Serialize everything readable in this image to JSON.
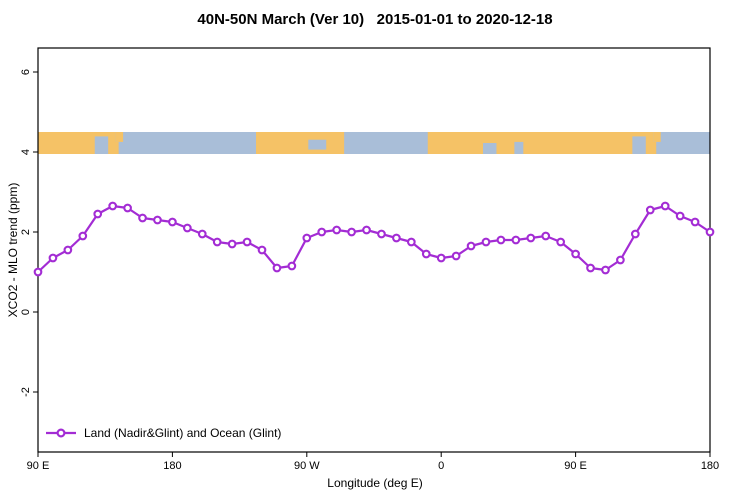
{
  "chart_data": {
    "type": "line",
    "title": "40N-50N March (Ver 10)   2015-01-01 to 2020-12-18",
    "xlabel": "Longitude (deg E)",
    "ylabel": "XCO2 - MLO trend (ppm)",
    "xlim": [
      90,
      540
    ],
    "ylim": [
      -3.5,
      6.6
    ],
    "grid": false,
    "x_ticks": [
      {
        "value": 90,
        "label": "90 E"
      },
      {
        "value": 180,
        "label": "180"
      },
      {
        "value": 270,
        "label": "90 W"
      },
      {
        "value": 360,
        "label": "0"
      },
      {
        "value": 450,
        "label": "90 E"
      },
      {
        "value": 540,
        "label": "180"
      }
    ],
    "y_ticks": [
      {
        "value": -2,
        "label": "-2"
      },
      {
        "value": 0,
        "label": "0"
      },
      {
        "value": 2,
        "label": "2"
      },
      {
        "value": 4,
        "label": "4"
      },
      {
        "value": 6,
        "label": "6"
      }
    ],
    "series": [
      {
        "name": "Land (Nadir&Glint) and Ocean (Glint)",
        "color": "#a32cd4",
        "marker": "open-circle",
        "x": [
          90,
          100,
          110,
          120,
          130,
          140,
          150,
          160,
          170,
          180,
          190,
          200,
          210,
          220,
          230,
          240,
          250,
          260,
          270,
          280,
          290,
          300,
          310,
          320,
          330,
          340,
          350,
          360,
          370,
          380,
          390,
          400,
          410,
          420,
          430,
          440,
          450,
          460,
          470,
          480,
          490,
          500,
          510,
          520,
          530,
          540
        ],
        "y": [
          1.0,
          1.35,
          1.55,
          1.9,
          2.45,
          2.65,
          2.6,
          2.35,
          2.3,
          2.25,
          2.1,
          1.95,
          1.75,
          1.7,
          1.75,
          1.55,
          1.1,
          1.15,
          1.85,
          2.0,
          2.05,
          2.0,
          2.05,
          1.95,
          1.85,
          1.75,
          1.45,
          1.35,
          1.4,
          1.65,
          1.75,
          1.8,
          1.8,
          1.85,
          1.9,
          1.75,
          1.45,
          1.1,
          1.05,
          1.3,
          1.95,
          2.55,
          2.65,
          2.4,
          2.25,
          2.0
        ]
      }
    ],
    "legend": {
      "position": "bottom-left",
      "entries": [
        "Land (Nadir&Glint) and Ocean (Glint)"
      ]
    },
    "map_strip": {
      "description": "40N-50N latitude band world-map ribbon",
      "value_top": 4.5,
      "value_bottom": 3.95,
      "ocean_color": "#a9bed8",
      "land_color": "#f5c266",
      "land_segments": [
        [
          90,
          142
        ],
        [
          236,
          295
        ],
        [
          351,
          502
        ]
      ],
      "island_patches": [
        [
          137,
          144,
          0.45,
          0.55
        ],
        [
          142,
          147,
          0.0,
          0.45
        ],
        [
          497,
          504,
          0.45,
          0.55
        ],
        [
          502,
          507,
          0.0,
          0.45
        ]
      ],
      "sea_patches": [
        [
          128,
          137,
          0.2,
          0.8
        ],
        [
          271,
          283,
          0.35,
          0.45
        ],
        [
          388,
          397,
          0.5,
          0.5
        ],
        [
          409,
          415,
          0.45,
          0.55
        ],
        [
          488,
          497,
          0.2,
          0.8
        ]
      ]
    }
  }
}
